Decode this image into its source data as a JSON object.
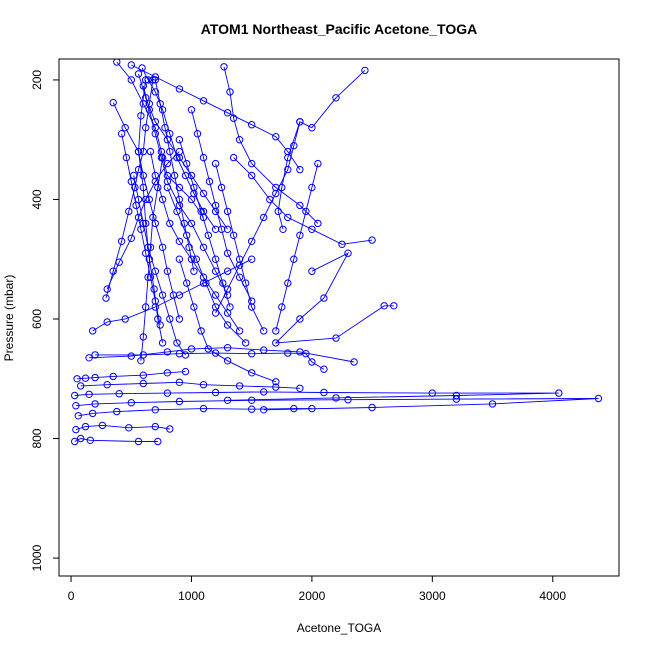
{
  "chart_data": {
    "type": "line",
    "title": "ATOM1 Northeast_Pacific Acetone_TOGA",
    "xlabel": "Acetone_TOGA",
    "ylabel": "Pressure (mbar)",
    "xlim": [
      -100,
      4550
    ],
    "ylim": [
      1030,
      165
    ],
    "y_reversed": true,
    "x_ticks": [
      0,
      1000,
      2000,
      3000,
      4000
    ],
    "y_ticks": [
      200,
      400,
      600,
      800,
      1000
    ],
    "grid": false,
    "legend": "none",
    "colors": {
      "series": "#0000ff",
      "axes": "#000000",
      "background": "#ffffff"
    },
    "series": [
      {
        "values": [
          [
            30,
            805
          ],
          [
            80,
            800
          ],
          [
            160,
            803
          ],
          [
            560,
            805
          ],
          [
            720,
            805
          ]
        ]
      },
      {
        "values": [
          [
            40,
            785
          ],
          [
            120,
            780
          ],
          [
            260,
            778
          ],
          [
            480,
            782
          ],
          [
            700,
            780
          ],
          [
            820,
            784
          ]
        ]
      },
      {
        "values": [
          [
            60,
            762
          ],
          [
            180,
            758
          ],
          [
            380,
            755
          ],
          [
            700,
            752
          ],
          [
            1100,
            750
          ],
          [
            1500,
            751
          ],
          [
            1850,
            750
          ],
          [
            2000,
            750
          ]
        ]
      },
      {
        "values": [
          [
            40,
            745
          ],
          [
            200,
            742
          ],
          [
            500,
            740
          ],
          [
            900,
            738
          ],
          [
            1500,
            736
          ],
          [
            2300,
            735
          ],
          [
            3200,
            734
          ],
          [
            4380,
            733
          ],
          [
            3500,
            742
          ],
          [
            2500,
            748
          ],
          [
            1600,
            752
          ]
        ]
      },
      {
        "values": [
          [
            30,
            728
          ],
          [
            150,
            726
          ],
          [
            400,
            725
          ],
          [
            800,
            724
          ],
          [
            1200,
            723
          ],
          [
            1600,
            722
          ],
          [
            2100,
            723
          ],
          [
            3000,
            724
          ],
          [
            4050,
            724
          ],
          [
            3200,
            728
          ],
          [
            2200,
            732
          ],
          [
            1300,
            736
          ]
        ]
      },
      {
        "values": [
          [
            80,
            712
          ],
          [
            300,
            710
          ],
          [
            600,
            708
          ],
          [
            900,
            706
          ],
          [
            1100,
            710
          ],
          [
            1400,
            712
          ],
          [
            1700,
            714
          ],
          [
            1900,
            716
          ]
        ]
      },
      {
        "values": [
          [
            50,
            700
          ],
          [
            120,
            699
          ],
          [
            200,
            698
          ],
          [
            350,
            696
          ],
          [
            600,
            694
          ],
          [
            800,
            690
          ],
          [
            950,
            688
          ]
        ]
      },
      {
        "values": [
          [
            200,
            660
          ],
          [
            600,
            660
          ],
          [
            900,
            658
          ],
          [
            1200,
            657
          ],
          [
            1500,
            658
          ],
          [
            1800,
            657
          ],
          [
            1950,
            658
          ],
          [
            2000,
            672
          ],
          [
            2100,
            684
          ]
        ]
      },
      {
        "values": [
          [
            150,
            665
          ],
          [
            500,
            662
          ],
          [
            800,
            655
          ],
          [
            1000,
            650
          ],
          [
            1300,
            648
          ],
          [
            1600,
            652
          ],
          [
            1900,
            655
          ],
          [
            2350,
            672
          ]
        ]
      },
      {
        "values": [
          [
            180,
            620
          ],
          [
            300,
            605
          ],
          [
            450,
            600
          ],
          [
            700,
            580
          ],
          [
            900,
            560
          ],
          [
            1100,
            540
          ],
          [
            1300,
            520
          ],
          [
            1500,
            500
          ]
        ]
      },
      {
        "values": [
          [
            300,
            550
          ],
          [
            400,
            505
          ],
          [
            500,
            465
          ],
          [
            560,
            430
          ],
          [
            620,
            400
          ],
          [
            700,
            370
          ],
          [
            800,
            340
          ],
          [
            900,
            320
          ]
        ]
      },
      {
        "values": [
          [
            290,
            565
          ],
          [
            350,
            520
          ],
          [
            420,
            470
          ],
          [
            480,
            420
          ],
          [
            530,
            380
          ],
          [
            560,
            350
          ],
          [
            600,
            320
          ],
          [
            620,
            280
          ],
          [
            650,
            240
          ],
          [
            680,
            200
          ]
        ]
      },
      {
        "values": [
          [
            600,
            210
          ],
          [
            650,
            250
          ],
          [
            700,
            290
          ],
          [
            750,
            330
          ],
          [
            800,
            370
          ],
          [
            900,
            410
          ],
          [
            1000,
            440
          ],
          [
            1100,
            480
          ],
          [
            1200,
            520
          ],
          [
            1300,
            560
          ]
        ]
      },
      {
        "values": [
          [
            560,
            190
          ],
          [
            620,
            230
          ],
          [
            700,
            270
          ],
          [
            800,
            300
          ],
          [
            900,
            330
          ],
          [
            1000,
            360
          ],
          [
            1100,
            390
          ],
          [
            1200,
            420
          ],
          [
            1300,
            450
          ]
        ]
      },
      {
        "values": [
          [
            500,
            175
          ],
          [
            700,
            195
          ],
          [
            900,
            215
          ],
          [
            1100,
            235
          ],
          [
            1300,
            255
          ],
          [
            1500,
            275
          ],
          [
            1700,
            295
          ],
          [
            1800,
            320
          ],
          [
            1900,
            350
          ]
        ]
      },
      {
        "values": [
          [
            1270,
            178
          ],
          [
            1320,
            220
          ],
          [
            1350,
            264
          ],
          [
            1400,
            300
          ],
          [
            1500,
            340
          ],
          [
            1700,
            380
          ],
          [
            1900,
            410
          ],
          [
            2050,
            440
          ]
        ]
      },
      {
        "values": [
          [
            2440,
            184
          ],
          [
            2200,
            230
          ],
          [
            2000,
            280
          ],
          [
            1900,
            270
          ],
          [
            1800,
            330
          ],
          [
            1750,
            380
          ],
          [
            1720,
            420
          ],
          [
            1760,
            450
          ]
        ]
      },
      {
        "values": [
          [
            1350,
            330
          ],
          [
            1500,
            360
          ],
          [
            1650,
            400
          ],
          [
            1800,
            430
          ],
          [
            2000,
            450
          ],
          [
            2250,
            475
          ],
          [
            2500,
            468
          ]
        ]
      },
      {
        "values": [
          [
            2000,
            520
          ],
          [
            2300,
            490
          ],
          [
            2100,
            565
          ],
          [
            1900,
            600
          ],
          [
            1700,
            640
          ],
          [
            2200,
            632
          ],
          [
            2600,
            578
          ],
          [
            2680,
            578
          ]
        ]
      },
      {
        "values": [
          [
            380,
            170
          ],
          [
            500,
            200
          ],
          [
            600,
            240
          ],
          [
            700,
            280
          ],
          [
            750,
            320
          ],
          [
            800,
            360
          ],
          [
            900,
            380
          ],
          [
            1000,
            400
          ],
          [
            1100,
            430
          ]
        ]
      },
      {
        "values": [
          [
            350,
            238
          ],
          [
            450,
            280
          ],
          [
            560,
            320
          ],
          [
            600,
            360
          ],
          [
            650,
            400
          ],
          [
            700,
            440
          ],
          [
            760,
            480
          ],
          [
            800,
            520
          ],
          [
            850,
            560
          ],
          [
            900,
            600
          ]
        ]
      },
      {
        "values": [
          [
            590,
            180
          ],
          [
            640,
            200
          ],
          [
            700,
            220
          ],
          [
            760,
            250
          ],
          [
            820,
            290
          ],
          [
            880,
            330
          ],
          [
            950,
            360
          ],
          [
            1020,
            390
          ],
          [
            1100,
            420
          ],
          [
            1200,
            450
          ]
        ]
      },
      {
        "values": [
          [
            620,
            200
          ],
          [
            580,
            260
          ],
          [
            560,
            320
          ],
          [
            600,
            380
          ],
          [
            620,
            440
          ],
          [
            650,
            500
          ],
          [
            690,
            550
          ],
          [
            720,
            600
          ],
          [
            760,
            640
          ]
        ]
      },
      {
        "values": [
          [
            520,
            360
          ],
          [
            560,
            400
          ],
          [
            600,
            440
          ],
          [
            640,
            480
          ],
          [
            700,
            520
          ],
          [
            760,
            560
          ],
          [
            820,
            600
          ],
          [
            880,
            640
          ],
          [
            950,
            660
          ]
        ]
      },
      {
        "values": [
          [
            660,
            320
          ],
          [
            700,
            360
          ],
          [
            760,
            400
          ],
          [
            820,
            440
          ],
          [
            900,
            470
          ],
          [
            1000,
            500
          ],
          [
            1100,
            530
          ],
          [
            1200,
            560
          ],
          [
            1300,
            590
          ],
          [
            1400,
            620
          ]
        ]
      },
      {
        "values": [
          [
            800,
            380
          ],
          [
            880,
            420
          ],
          [
            960,
            460
          ],
          [
            1040,
            500
          ],
          [
            1120,
            540
          ],
          [
            1200,
            580
          ],
          [
            1300,
            610
          ],
          [
            1450,
            640
          ]
        ]
      },
      {
        "values": [
          [
            900,
            300
          ],
          [
            960,
            340
          ],
          [
            1020,
            380
          ],
          [
            1080,
            420
          ],
          [
            1140,
            460
          ],
          [
            1200,
            500
          ],
          [
            1260,
            540
          ],
          [
            1320,
            580
          ]
        ]
      },
      {
        "values": [
          [
            1000,
            250
          ],
          [
            1050,
            290
          ],
          [
            1100,
            330
          ],
          [
            1150,
            370
          ],
          [
            1200,
            410
          ],
          [
            1250,
            450
          ],
          [
            1300,
            490
          ],
          [
            1400,
            530
          ],
          [
            1500,
            570
          ]
        ]
      },
      {
        "values": [
          [
            420,
            290
          ],
          [
            460,
            330
          ],
          [
            500,
            370
          ],
          [
            540,
            410
          ],
          [
            580,
            450
          ],
          [
            620,
            490
          ],
          [
            660,
            530
          ],
          [
            700,
            570
          ],
          [
            740,
            610
          ]
        ]
      },
      {
        "values": [
          [
            1900,
            270
          ],
          [
            1850,
            310
          ],
          [
            1800,
            350
          ],
          [
            1700,
            390
          ],
          [
            1600,
            430
          ],
          [
            1500,
            470
          ],
          [
            1400,
            510
          ],
          [
            1300,
            550
          ],
          [
            1200,
            590
          ]
        ]
      },
      {
        "values": [
          [
            2050,
            340
          ],
          [
            2000,
            380
          ],
          [
            1950,
            420
          ],
          [
            1900,
            460
          ],
          [
            1850,
            500
          ],
          [
            1800,
            540
          ],
          [
            1750,
            580
          ],
          [
            1700,
            620
          ]
        ]
      },
      {
        "values": [
          [
            1200,
            340
          ],
          [
            1250,
            380
          ],
          [
            1300,
            420
          ],
          [
            1350,
            460
          ],
          [
            1400,
            500
          ],
          [
            1450,
            540
          ],
          [
            1500,
            580
          ],
          [
            1600,
            620
          ]
        ]
      },
      {
        "values": [
          [
            700,
            200
          ],
          [
            740,
            240
          ],
          [
            780,
            280
          ],
          [
            820,
            320
          ],
          [
            860,
            360
          ],
          [
            900,
            400
          ],
          [
            940,
            440
          ],
          [
            980,
            480
          ],
          [
            1020,
            520
          ]
        ]
      },
      {
        "values": [
          [
            760,
            330
          ],
          [
            720,
            380
          ],
          [
            680,
            430
          ],
          [
            660,
            480
          ],
          [
            640,
            530
          ],
          [
            620,
            580
          ],
          [
            600,
            630
          ],
          [
            580,
            670
          ]
        ]
      },
      {
        "values": [
          [
            900,
            500
          ],
          [
            960,
            540
          ],
          [
            1020,
            580
          ],
          [
            1080,
            620
          ],
          [
            1140,
            650
          ],
          [
            1300,
            670
          ],
          [
            1500,
            690
          ],
          [
            1700,
            705
          ]
        ]
      }
    ]
  }
}
